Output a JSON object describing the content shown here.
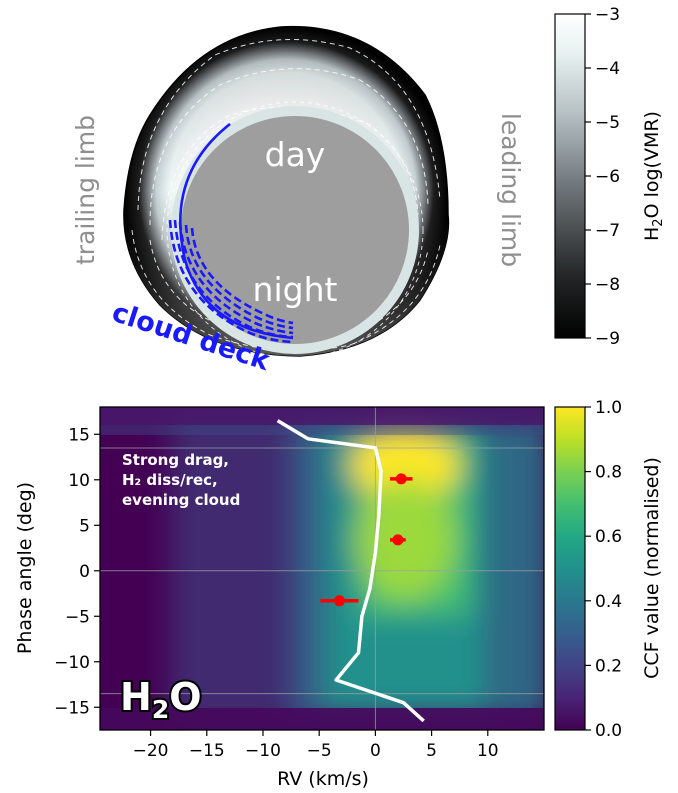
{
  "top_panel": {
    "day_label": "day",
    "night_label": "night",
    "trailing_limb_label": "trailing limb",
    "leading_limb_label": "leading limb",
    "cloud_deck_label": "cloud deck",
    "colorbar": {
      "label_prefix": "H",
      "label_sub": "2",
      "label_suffix": "O log(VMR)",
      "range": [
        -9,
        -3
      ],
      "ticks": [
        "−3",
        "−4",
        "−5",
        "−6",
        "−7",
        "−8",
        "−9"
      ]
    }
  },
  "chart_data": {
    "type": "heatmap",
    "xlabel": "RV (km/s)",
    "ylabel": "Phase angle (deg)",
    "xlim": [
      -24.5,
      15
    ],
    "ylim": [
      -17.5,
      18
    ],
    "x_ticks": [
      "−20",
      "−15",
      "−10",
      "−5",
      "0",
      "5",
      "10"
    ],
    "x_tick_values": [
      -20,
      -15,
      -10,
      -5,
      0,
      5,
      10
    ],
    "y_ticks": [
      "15",
      "10",
      "5",
      "0",
      "−5",
      "−10",
      "−15"
    ],
    "y_tick_values": [
      15,
      10,
      5,
      0,
      -5,
      -10,
      -15
    ],
    "colorbar": {
      "label": "CCF value (normalised)",
      "range": [
        0,
        1
      ],
      "ticks": [
        "0.0",
        "0.2",
        "0.4",
        "0.6",
        "0.8",
        "1.0"
      ]
    },
    "reference_lines": {
      "x": [
        0
      ],
      "y": [
        0,
        13.5,
        -13.5
      ]
    },
    "model_track": {
      "color": "#ffffff",
      "points": [
        [
          -8.7,
          16.5
        ],
        [
          -6.0,
          14.5
        ],
        [
          0.0,
          13.5
        ],
        [
          0.5,
          11.0
        ],
        [
          0.3,
          6.0
        ],
        [
          0.0,
          2.0
        ],
        [
          -0.5,
          -2.0
        ],
        [
          -1.2,
          -5.0
        ],
        [
          -1.5,
          -9.0
        ],
        [
          -3.5,
          -12.0
        ],
        [
          2.5,
          -14.5
        ],
        [
          4.3,
          -16.5
        ]
      ]
    },
    "measurements": {
      "color": "#ff0000",
      "points": [
        {
          "rv": 2.3,
          "rv_err": 1.0,
          "phase": 10.1
        },
        {
          "rv": 2.0,
          "rv_err": 0.7,
          "phase": 3.4
        },
        {
          "rv": -3.2,
          "rv_err": 1.7,
          "phase": -3.3
        }
      ]
    },
    "annotation_lines": [
      "Strong drag,",
      "H₂ diss/rec,",
      "evening cloud"
    ],
    "species_label": {
      "main": "H",
      "sub": "2",
      "tail": "O"
    }
  }
}
